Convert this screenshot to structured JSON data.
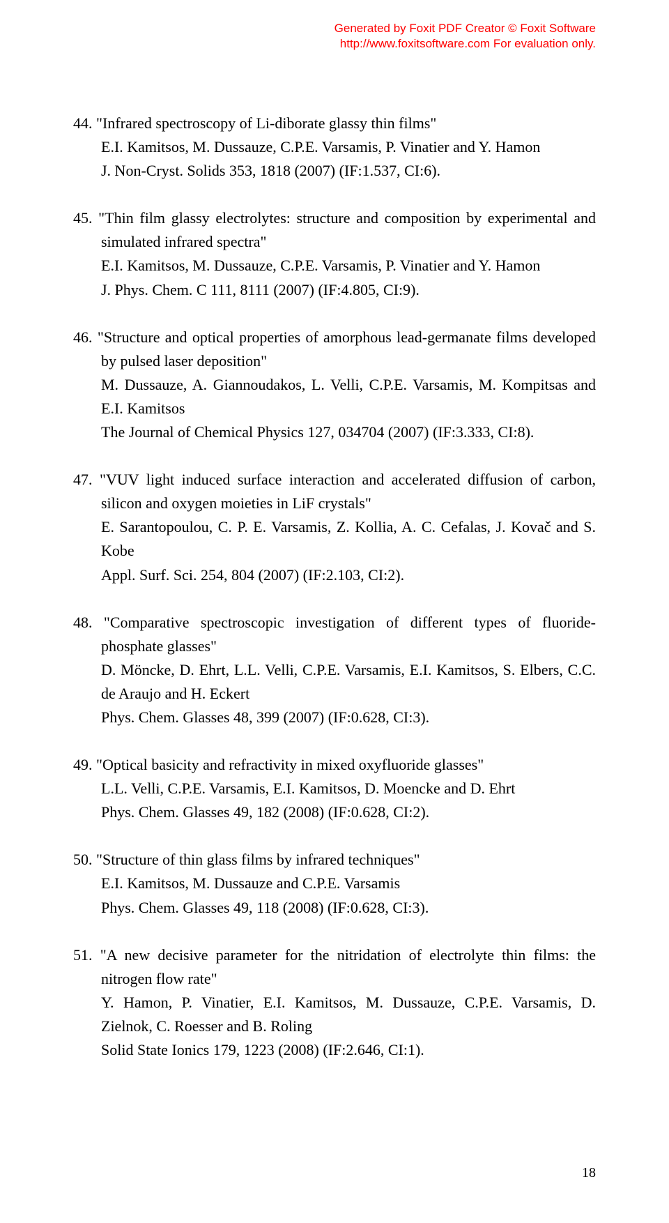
{
  "watermark": {
    "line1": "Generated by Foxit PDF Creator © Foxit Software",
    "line2": "http://www.foxitsoftware.com   For evaluation only."
  },
  "entries": [
    {
      "num": "44.",
      "title": "\"Infrared spectroscopy of Li-diborate glassy thin films\"",
      "authors": "E.I. Kamitsos, M. Dussauze, C.P.E. Varsamis, P. Vinatier and Y. Hamon",
      "pub": "J. Non-Cryst. Solids 353, 1818 (2007) (IF:1.537, CI:6)."
    },
    {
      "num": "45.",
      "title": "\"Thin film glassy electrolytes: structure and composition by experimental and simulated infrared spectra\"",
      "authors": "E.I. Kamitsos, M. Dussauze, C.P.E. Varsamis, P. Vinatier and Y. Hamon",
      "pub": "J. Phys. Chem. C 111, 8111 (2007) (IF:4.805, CI:9)."
    },
    {
      "num": "46.",
      "title": "\"Structure and optical properties of amorphous lead-germanate  films developed by pulsed laser deposition\"",
      "authors": "M. Dussauze, A. Giannoudakos, L. Velli, C.P.E. Varsamis, M. Kompitsas and E.I. Kamitsos",
      "pub": "The Journal of Chemical Physics 127, 034704 (2007) (IF:3.333, CI:8)."
    },
    {
      "num": "47.",
      "title": "\"VUV light induced surface interaction   and accelerated diffusion of carbon, silicon and oxygen moieties in LiF crystals\"",
      "authors": "E. Sarantopoulou, C. P. E. Varsamis, Z. Kollia, A. C. Cefalas, J. Kovač and S. Kobe",
      "pub": "Appl. Surf. Sci. 254, 804 (2007) (IF:2.103, CI:2)."
    },
    {
      "num": "48.",
      "title": "\"Comparative spectroscopic investigation of different types of fluoride-phosphate glasses\"",
      "authors": "D. Möncke, D. Ehrt, L.L. Velli, C.P.E. Varsamis, E.I. Kamitsos, S. Elbers, C.C. de Araujo and H. Eckert",
      "pub": "Phys. Chem. Glasses 48, 399 (2007) (IF:0.628, CI:3)."
    },
    {
      "num": "49.",
      "title": "\"Optical basicity and refractivity in mixed oxyfluoride glasses\"",
      "authors": "L.L. Velli, C.P.E. Varsamis, E.I. Kamitsos, D. Moencke and D. Ehrt",
      "pub": "Phys. Chem. Glasses 49, 182 (2008) (IF:0.628, CI:2)."
    },
    {
      "num": "50.",
      "title": "\"Structure of thin glass films by infrared techniques\"",
      "authors": "E.I. Kamitsos, M. Dussauze and C.P.E. Varsamis",
      "pub": "Phys. Chem. Glasses 49, 118 (2008) (IF:0.628, CI:3)."
    },
    {
      "num": "51.",
      "title": "\"A new decisive parameter for the nitridation of electrolyte thin films: the nitrogen flow rate\"",
      "authors": "Y. Hamon,   P. Vinatier,   E.I. Kamitsos,   M. Dussauze,   C.P.E. Varsamis,   D. Zielnok, C. Roesser and B. Roling",
      "pub": "Solid State Ionics 179, 1223 (2008) (IF:2.646, CI:1)."
    }
  ],
  "page_number": "18"
}
